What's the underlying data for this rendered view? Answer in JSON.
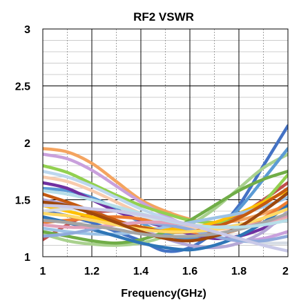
{
  "chart_data": {
    "type": "line",
    "title": "RF2 VSWR",
    "xlabel": "Frequency(GHz)",
    "ylabel": "",
    "xlim": [
      1,
      2
    ],
    "ylim": [
      1,
      3
    ],
    "x_ticks": [
      1,
      1.2,
      1.4,
      1.6,
      1.8,
      2
    ],
    "x_tick_labels": [
      "1",
      "1.2",
      "1.4",
      "1.6",
      "1.8",
      "2"
    ],
    "y_ticks": [
      1,
      1.5,
      2,
      2.5,
      3
    ],
    "y_tick_labels": [
      "1",
      "1.5",
      "2",
      "2.5",
      "3"
    ],
    "x_minor_step": 0.1,
    "y_minor_step": 0.1,
    "grid": true,
    "legend": "none",
    "x": [
      1.0,
      1.1,
      1.2,
      1.3,
      1.4,
      1.5,
      1.6,
      1.7,
      1.8,
      1.9,
      2.0
    ],
    "series": [
      {
        "color": "#4472c4",
        "values": [
          1.4,
          1.36,
          1.3,
          1.22,
          1.14,
          1.05,
          1.08,
          1.22,
          1.45,
          1.8,
          2.15
        ]
      },
      {
        "color": "#f4a460",
        "values": [
          1.95,
          1.92,
          1.82,
          1.66,
          1.5,
          1.4,
          1.33,
          1.3,
          1.32,
          1.38,
          1.45
        ]
      },
      {
        "color": "#a9d18e",
        "values": [
          1.2,
          1.14,
          1.11,
          1.1,
          1.12,
          1.18,
          1.28,
          1.42,
          1.6,
          1.78,
          1.9
        ]
      },
      {
        "color": "#5b9bd5",
        "values": [
          1.6,
          1.58,
          1.52,
          1.42,
          1.3,
          1.2,
          1.16,
          1.24,
          1.42,
          1.68,
          1.95
        ]
      },
      {
        "color": "#c0504d",
        "values": [
          1.15,
          1.28,
          1.38,
          1.4,
          1.36,
          1.3,
          1.26,
          1.28,
          1.36,
          1.5,
          1.65
        ]
      },
      {
        "color": "#7030a0",
        "values": [
          1.65,
          1.6,
          1.5,
          1.4,
          1.32,
          1.26,
          1.2,
          1.16,
          1.18,
          1.25,
          1.35
        ]
      },
      {
        "color": "#c9a0dc",
        "values": [
          1.9,
          1.86,
          1.76,
          1.62,
          1.48,
          1.36,
          1.26,
          1.18,
          1.14,
          1.16,
          1.22
        ]
      },
      {
        "color": "#92d050",
        "values": [
          1.8,
          1.74,
          1.64,
          1.54,
          1.45,
          1.38,
          1.32,
          1.3,
          1.34,
          1.48,
          1.72
        ]
      },
      {
        "color": "#b4a7d6",
        "values": [
          1.5,
          1.46,
          1.4,
          1.32,
          1.24,
          1.16,
          1.1,
          1.08,
          1.12,
          1.22,
          1.4
        ]
      },
      {
        "color": "#70ad47",
        "values": [
          1.22,
          1.18,
          1.14,
          1.12,
          1.15,
          1.22,
          1.32,
          1.45,
          1.58,
          1.68,
          1.75
        ]
      },
      {
        "color": "#ed7d31",
        "values": [
          1.3,
          1.32,
          1.34,
          1.35,
          1.33,
          1.28,
          1.22,
          1.2,
          1.24,
          1.34,
          1.48
        ]
      },
      {
        "color": "#ffc000",
        "values": [
          1.45,
          1.4,
          1.35,
          1.3,
          1.26,
          1.24,
          1.25,
          1.3,
          1.38,
          1.48,
          1.58
        ]
      },
      {
        "color": "#9dc3e6",
        "values": [
          1.25,
          1.22,
          1.2,
          1.2,
          1.22,
          1.26,
          1.3,
          1.34,
          1.38,
          1.44,
          1.52
        ]
      },
      {
        "color": "#f8cbad",
        "values": [
          1.7,
          1.66,
          1.58,
          1.48,
          1.38,
          1.3,
          1.26,
          1.24,
          1.26,
          1.3,
          1.35
        ]
      },
      {
        "color": "#2e75b6",
        "values": [
          1.35,
          1.3,
          1.24,
          1.18,
          1.12,
          1.08,
          1.06,
          1.1,
          1.18,
          1.3,
          1.45
        ]
      },
      {
        "color": "#d6dce5",
        "values": [
          1.4,
          1.42,
          1.42,
          1.4,
          1.36,
          1.3,
          1.24,
          1.18,
          1.14,
          1.12,
          1.12
        ]
      },
      {
        "color": "#c55a11",
        "values": [
          1.55,
          1.48,
          1.4,
          1.32,
          1.26,
          1.22,
          1.22,
          1.26,
          1.34,
          1.46,
          1.6
        ]
      },
      {
        "color": "#bdd7ee",
        "values": [
          1.75,
          1.7,
          1.62,
          1.52,
          1.42,
          1.34,
          1.28,
          1.26,
          1.28,
          1.34,
          1.42
        ]
      },
      {
        "color": "#8faadc",
        "values": [
          1.18,
          1.2,
          1.24,
          1.28,
          1.3,
          1.28,
          1.24,
          1.18,
          1.14,
          1.14,
          1.18
        ]
      },
      {
        "color": "#e2a0b8",
        "values": [
          1.28,
          1.26,
          1.26,
          1.28,
          1.3,
          1.3,
          1.28,
          1.26,
          1.26,
          1.3,
          1.36
        ]
      },
      {
        "color": "#ffd966",
        "values": [
          1.38,
          1.36,
          1.32,
          1.28,
          1.24,
          1.22,
          1.22,
          1.24,
          1.28,
          1.34,
          1.42
        ]
      },
      {
        "color": "#9e480e",
        "values": [
          1.48,
          1.45,
          1.38,
          1.3,
          1.22,
          1.16,
          1.14,
          1.18,
          1.26,
          1.4,
          1.56
        ]
      },
      {
        "color": "#a5a5a5",
        "values": [
          1.32,
          1.3,
          1.27,
          1.24,
          1.2,
          1.18,
          1.18,
          1.2,
          1.24,
          1.3,
          1.38
        ]
      },
      {
        "color": "#b7dee8",
        "values": [
          1.58,
          1.55,
          1.5,
          1.44,
          1.38,
          1.32,
          1.28,
          1.26,
          1.26,
          1.28,
          1.32
        ]
      },
      {
        "color": "#c9c9e8",
        "values": [
          1.45,
          1.44,
          1.42,
          1.4,
          1.37,
          1.33,
          1.28,
          1.22,
          1.16,
          1.1,
          1.05
        ]
      }
    ]
  }
}
